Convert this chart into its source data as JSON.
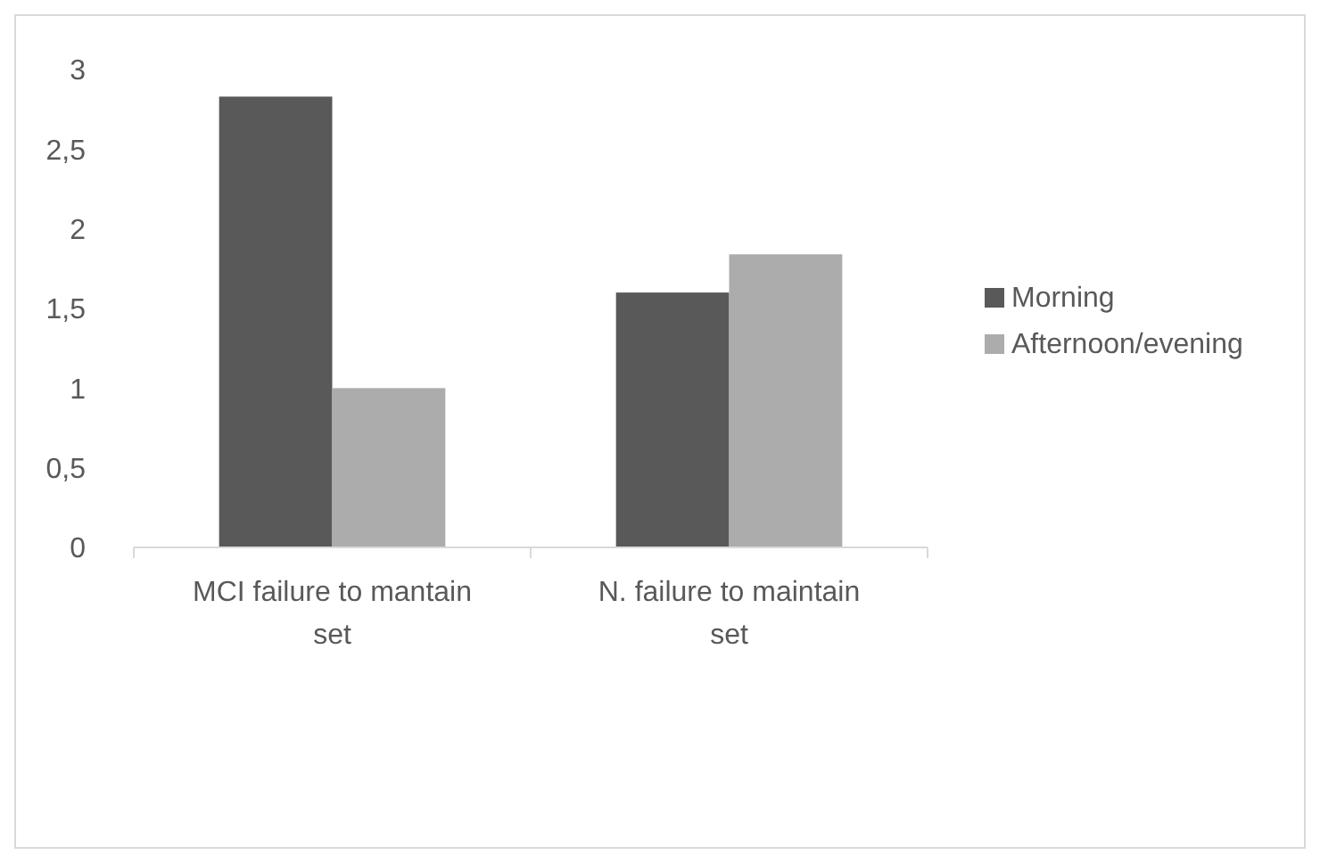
{
  "chart_data": {
    "type": "bar",
    "categories": [
      "MCI failure to mantain set",
      "N. failure to maintain set"
    ],
    "series": [
      {
        "name": "Morning",
        "color": "#595959",
        "values": [
          2.83,
          1.6
        ]
      },
      {
        "name": "Afternoon/evening",
        "color": "#acacac",
        "values": [
          1,
          1.84
        ]
      }
    ],
    "ylim": [
      0,
      3
    ],
    "yticks": [
      {
        "value": 0,
        "label": "0"
      },
      {
        "value": 0.5,
        "label": "0,5"
      },
      {
        "value": 1,
        "label": "1"
      },
      {
        "value": 1.5,
        "label": "1,5"
      },
      {
        "value": 2,
        "label": "2"
      },
      {
        "value": 2.5,
        "label": "2,5"
      },
      {
        "value": 3,
        "label": "3"
      }
    ],
    "grid": false,
    "legend": "right"
  }
}
